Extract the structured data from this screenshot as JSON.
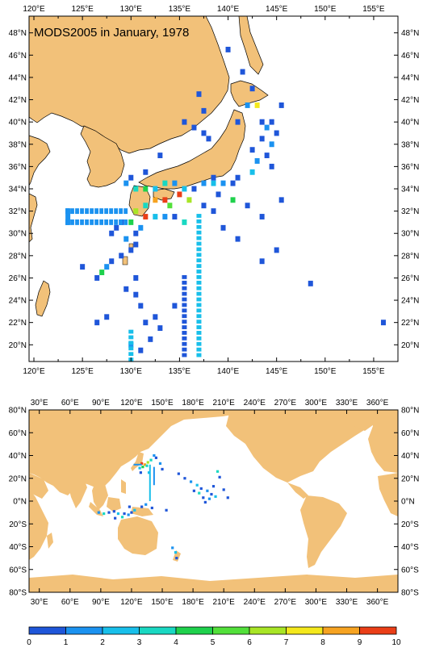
{
  "title": "MODS2005 in January, 1978",
  "colors": {
    "land": "#f2c179",
    "coast": "#000000",
    "ocean": "#ffffff",
    "frame": "#000000"
  },
  "top_map": {
    "lon_range": [
      119.5,
      157.5
    ],
    "lat_range": [
      18.5,
      49.5
    ],
    "lon_ticks": [
      "120°E",
      "125°E",
      "130°E",
      "135°E",
      "140°E",
      "145°E",
      "150°E",
      "155°E"
    ],
    "lat_ticks": [
      "20°N",
      "22°N",
      "24°N",
      "26°N",
      "28°N",
      "30°N",
      "32°N",
      "34°N",
      "36°N",
      "38°N",
      "40°N",
      "42°N",
      "44°N",
      "46°N",
      "48°N"
    ]
  },
  "bottom_map": {
    "lon_range": [
      20,
      380
    ],
    "lat_range": [
      -80,
      80
    ],
    "lon_ticks": [
      "30°E",
      "60°E",
      "90°E",
      "120°E",
      "150°E",
      "180°E",
      "210°E",
      "240°E",
      "270°E",
      "300°E",
      "330°E",
      "360°E"
    ],
    "lat_ticks": [
      "80°S",
      "60°S",
      "40°S",
      "20°S",
      "0°N",
      "20°N",
      "40°N",
      "60°N",
      "80°N"
    ]
  },
  "colorbar": {
    "tick_labels": [
      "0",
      "1",
      "2",
      "3",
      "4",
      "5",
      "6",
      "7",
      "8",
      "9",
      "10"
    ],
    "colors": [
      "#1f56d9",
      "#1b92f0",
      "#18bfea",
      "#19d8c2",
      "#1fd14c",
      "#52e03a",
      "#a8e526",
      "#f4e81c",
      "#f6a321",
      "#ea3e17"
    ]
  },
  "top_cells": [
    {
      "lon": 141.5,
      "lat": 44.5,
      "v": 1
    },
    {
      "lon": 142.5,
      "lat": 43.0,
      "v": 1
    },
    {
      "lon": 142.0,
      "lat": 41.5,
      "v": 2
    },
    {
      "lon": 143.0,
      "lat": 41.5,
      "v": 8
    },
    {
      "lon": 145.5,
      "lat": 41.5,
      "v": 1
    },
    {
      "lon": 137.5,
      "lat": 41.0,
      "v": 1
    },
    {
      "lon": 141.0,
      "lat": 40.0,
      "v": 1
    },
    {
      "lon": 143.5,
      "lat": 40.0,
      "v": 1
    },
    {
      "lon": 144.5,
      "lat": 40.0,
      "v": 1
    },
    {
      "lon": 144.0,
      "lat": 39.5,
      "v": 2
    },
    {
      "lon": 145.0,
      "lat": 39.0,
      "v": 1
    },
    {
      "lon": 143.5,
      "lat": 38.5,
      "v": 1
    },
    {
      "lon": 144.5,
      "lat": 38.0,
      "v": 2
    },
    {
      "lon": 142.5,
      "lat": 37.5,
      "v": 1
    },
    {
      "lon": 144.0,
      "lat": 37.0,
      "v": 1
    },
    {
      "lon": 143.0,
      "lat": 36.5,
      "v": 2
    },
    {
      "lon": 142.5,
      "lat": 35.5,
      "v": 3
    },
    {
      "lon": 141.0,
      "lat": 35.0,
      "v": 1
    },
    {
      "lon": 135.5,
      "lat": 40.0,
      "v": 1
    },
    {
      "lon": 136.5,
      "lat": 39.5,
      "v": 1
    },
    {
      "lon": 137.5,
      "lat": 39.0,
      "v": 1
    },
    {
      "lon": 138.0,
      "lat": 38.5,
      "v": 1
    },
    {
      "lon": 133.0,
      "lat": 37.0,
      "v": 1
    },
    {
      "lon": 131.5,
      "lat": 35.5,
      "v": 1
    },
    {
      "lon": 130.0,
      "lat": 35.0,
      "v": 1
    },
    {
      "lon": 129.5,
      "lat": 34.5,
      "v": 2
    },
    {
      "lon": 130.5,
      "lat": 34.0,
      "v": 4
    },
    {
      "lon": 131.5,
      "lat": 34.0,
      "v": 5
    },
    {
      "lon": 132.5,
      "lat": 34.0,
      "v": 3
    },
    {
      "lon": 133.5,
      "lat": 34.5,
      "v": 4
    },
    {
      "lon": 134.5,
      "lat": 34.5,
      "v": 2
    },
    {
      "lon": 135.5,
      "lat": 34.0,
      "v": 3
    },
    {
      "lon": 136.5,
      "lat": 34.0,
      "v": 1
    },
    {
      "lon": 137.5,
      "lat": 34.5,
      "v": 2
    },
    {
      "lon": 138.5,
      "lat": 34.5,
      "v": 3
    },
    {
      "lon": 139.5,
      "lat": 34.5,
      "v": 2
    },
    {
      "lon": 140.5,
      "lat": 34.5,
      "v": 1
    },
    {
      "lon": 139.0,
      "lat": 33.5,
      "v": 1
    },
    {
      "lon": 140.5,
      "lat": 33.0,
      "v": 5
    },
    {
      "lon": 132.5,
      "lat": 33.0,
      "v": 9
    },
    {
      "lon": 133.5,
      "lat": 33.0,
      "v": 10
    },
    {
      "lon": 134.0,
      "lat": 32.5,
      "v": 6
    },
    {
      "lon": 135.0,
      "lat": 33.5,
      "v": 10
    },
    {
      "lon": 136.0,
      "lat": 33.0,
      "v": 7
    },
    {
      "lon": 131.5,
      "lat": 32.5,
      "v": 4
    },
    {
      "lon": 130.5,
      "lat": 32.0,
      "v": 7
    },
    {
      "lon": 131.5,
      "lat": 31.5,
      "v": 10
    },
    {
      "lon": 132.5,
      "lat": 31.5,
      "v": 3
    },
    {
      "lon": 133.5,
      "lat": 31.5,
      "v": 2
    },
    {
      "lon": 134.5,
      "lat": 31.5,
      "v": 1
    },
    {
      "lon": 135.5,
      "lat": 31.0,
      "v": 4
    },
    {
      "lon": 130.0,
      "lat": 31.0,
      "v": 5
    },
    {
      "lon": 131.0,
      "lat": 30.5,
      "v": 2
    },
    {
      "lon": 130.5,
      "lat": 30.0,
      "v": 1
    },
    {
      "lon": 129.5,
      "lat": 29.5,
      "v": 2
    },
    {
      "lon": 130.0,
      "lat": 28.5,
      "v": 1
    },
    {
      "lon": 129.0,
      "lat": 28.0,
      "v": 1
    },
    {
      "lon": 128.0,
      "lat": 27.5,
      "v": 1
    },
    {
      "lon": 127.5,
      "lat": 27.0,
      "v": 2
    },
    {
      "lon": 127.0,
      "lat": 26.5,
      "v": 5
    },
    {
      "lon": 126.5,
      "lat": 26.0,
      "v": 1
    },
    {
      "lon": 128.5,
      "lat": 30.5,
      "v": 1
    },
    {
      "lon": 129.0,
      "lat": 31.0,
      "v": 1
    },
    {
      "lon": 128.0,
      "lat": 30.0,
      "v": 1
    },
    {
      "lon": 130.5,
      "lat": 29.0,
      "v": 1
    },
    {
      "lon": 125.0,
      "lat": 27.0,
      "v": 1
    },
    {
      "lon": 130.5,
      "lat": 26.0,
      "v": 1
    },
    {
      "lon": 130.5,
      "lat": 24.5,
      "v": 1
    },
    {
      "lon": 131.0,
      "lat": 23.5,
      "v": 1
    },
    {
      "lon": 131.5,
      "lat": 22.0,
      "v": 1
    },
    {
      "lon": 132.5,
      "lat": 22.5,
      "v": 1
    },
    {
      "lon": 133.0,
      "lat": 21.5,
      "v": 1
    },
    {
      "lon": 132.0,
      "lat": 20.5,
      "v": 1
    },
    {
      "lon": 130.0,
      "lat": 20.0,
      "v": 2
    },
    {
      "lon": 131.0,
      "lat": 19.5,
      "v": 1
    },
    {
      "lon": 134.5,
      "lat": 23.5,
      "v": 1
    },
    {
      "lon": 127.5,
      "lat": 22.5,
      "v": 1
    },
    {
      "lon": 126.5,
      "lat": 22.0,
      "v": 1
    },
    {
      "lon": 129.5,
      "lat": 25.0,
      "v": 1
    },
    {
      "lon": 156.0,
      "lat": 22.0,
      "v": 1
    },
    {
      "lon": 145.0,
      "lat": 28.5,
      "v": 1
    },
    {
      "lon": 143.5,
      "lat": 27.5,
      "v": 1
    },
    {
      "lon": 148.5,
      "lat": 25.5,
      "v": 1
    },
    {
      "lon": 145.5,
      "lat": 33.0,
      "v": 1
    },
    {
      "lon": 143.5,
      "lat": 31.5,
      "v": 1
    },
    {
      "lon": 142.0,
      "lat": 32.5,
      "v": 1
    },
    {
      "lon": 141.0,
      "lat": 29.5,
      "v": 1
    },
    {
      "lon": 139.5,
      "lat": 30.5,
      "v": 1
    },
    {
      "lon": 138.5,
      "lat": 32.0,
      "v": 1
    },
    {
      "lon": 137.5,
      "lat": 32.5,
      "v": 1
    },
    {
      "lon": 138.5,
      "lat": 35.0,
      "v": 1
    },
    {
      "lon": 144.5,
      "lat": 36.0,
      "v": 1
    },
    {
      "lon": 137.0,
      "lat": 42.5,
      "v": 1
    },
    {
      "lon": 140.0,
      "lat": 46.5,
      "v": 1
    }
  ],
  "top_lines": [
    {
      "type": "box",
      "lon0": 123.5,
      "lon1": 129.5,
      "lat0": 31.0,
      "lat1": 32.0,
      "v": 2
    },
    {
      "type": "vline",
      "lon": 137.0,
      "lat0": 19.0,
      "lat1": 31.5,
      "v": 3
    },
    {
      "type": "vline",
      "lon": 130.0,
      "lat0": 18.6,
      "lat1": 21.5,
      "v": 3
    },
    {
      "type": "vline",
      "lon": 135.5,
      "lat0": 19.0,
      "lat1": 26.0,
      "v": 1
    }
  ],
  "bottom_cells": [
    {
      "lon": 130,
      "lat": 33,
      "v": 10
    },
    {
      "lon": 133,
      "lat": 32,
      "v": 9
    },
    {
      "lon": 136,
      "lat": 34,
      "v": 7
    },
    {
      "lon": 139,
      "lat": 36,
      "v": 4
    },
    {
      "lon": 142,
      "lat": 40,
      "v": 2
    },
    {
      "lon": 144,
      "lat": 38,
      "v": 1
    },
    {
      "lon": 128,
      "lat": 29,
      "v": 3
    },
    {
      "lon": 131,
      "lat": 30,
      "v": 5
    },
    {
      "lon": 135,
      "lat": 31,
      "v": 4
    },
    {
      "lon": 129,
      "lat": 25,
      "v": 1
    },
    {
      "lon": 137,
      "lat": 25,
      "v": 3
    },
    {
      "lon": 154,
      "lat": -8,
      "v": 1
    },
    {
      "lon": 88,
      "lat": -10,
      "v": 2
    },
    {
      "lon": 93,
      "lat": -11,
      "v": 4
    },
    {
      "lon": 98,
      "lat": -10,
      "v": 1
    },
    {
      "lon": 103,
      "lat": -9,
      "v": 1
    },
    {
      "lon": 107,
      "lat": -11,
      "v": 3
    },
    {
      "lon": 113,
      "lat": -11,
      "v": 1
    },
    {
      "lon": 117,
      "lat": -12,
      "v": 2
    },
    {
      "lon": 120,
      "lat": -10,
      "v": 1
    },
    {
      "lon": 123,
      "lat": -8,
      "v": 3
    },
    {
      "lon": 130,
      "lat": -5,
      "v": 1
    },
    {
      "lon": 134,
      "lat": -3,
      "v": 2
    },
    {
      "lon": 140,
      "lat": -6,
      "v": 1
    },
    {
      "lon": 111,
      "lat": -14,
      "v": 4
    },
    {
      "lon": 104,
      "lat": -15,
      "v": 1
    },
    {
      "lon": 118,
      "lat": -5,
      "v": 1
    },
    {
      "lon": 166,
      "lat": 24,
      "v": 1
    },
    {
      "lon": 172,
      "lat": 20,
      "v": 1
    },
    {
      "lon": 178,
      "lat": 17,
      "v": 2
    },
    {
      "lon": 184,
      "lat": 14,
      "v": 3
    },
    {
      "lon": 188,
      "lat": 11,
      "v": 1
    },
    {
      "lon": 194,
      "lat": 9,
      "v": 2
    },
    {
      "lon": 198,
      "lat": 6,
      "v": 1
    },
    {
      "lon": 202,
      "lat": 4,
      "v": 3
    },
    {
      "lon": 186,
      "lat": 7,
      "v": 4
    },
    {
      "lon": 190,
      "lat": 3,
      "v": 1
    },
    {
      "lon": 196,
      "lat": 2,
      "v": 2
    },
    {
      "lon": 181,
      "lat": 9,
      "v": 1
    },
    {
      "lon": 200,
      "lat": 13,
      "v": 1
    },
    {
      "lon": 204,
      "lat": 26,
      "v": 4
    },
    {
      "lon": 206,
      "lat": 21,
      "v": 1
    },
    {
      "lon": 210,
      "lat": 10,
      "v": 1
    },
    {
      "lon": 214,
      "lat": 3,
      "v": 1
    },
    {
      "lon": 192,
      "lat": -1,
      "v": 1
    },
    {
      "lon": 160,
      "lat": -41,
      "v": 2
    },
    {
      "lon": 163,
      "lat": -45,
      "v": 3
    },
    {
      "lon": 164,
      "lat": -50,
      "v": 1
    },
    {
      "lon": 150,
      "lat": 28,
      "v": 1
    },
    {
      "lon": 148,
      "lat": 33,
      "v": 2
    }
  ],
  "bottom_lines": [
    {
      "type": "vline",
      "lon": 138,
      "lat0": 0,
      "lat1": 32,
      "v": 3
    },
    {
      "type": "vline",
      "lon": 142,
      "lat0": 14,
      "lat1": 30,
      "v": 2
    },
    {
      "type": "hline",
      "lat": 32,
      "lon0": 122,
      "lon1": 130,
      "v": 2
    }
  ]
}
